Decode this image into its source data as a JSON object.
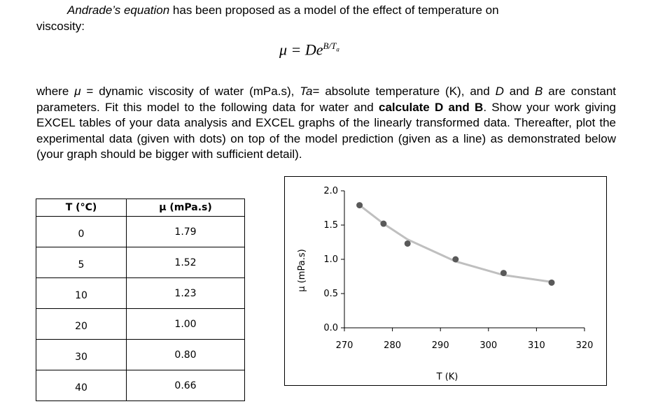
{
  "intro": {
    "em": "Andrade’s equation",
    "rest_line1": " has been proposed as a model of the effect of temperature on",
    "line2": "viscosity:"
  },
  "formula": {
    "lhs": "μ = D",
    "e": "e",
    "exp": "B/T",
    "sub": "a"
  },
  "body": {
    "p1": "where ",
    "mu": "μ",
    "p2": " = dynamic viscosity of water (mPa.s), ",
    "ta": "Ta",
    "p3": "= absolute temperature (K), and ",
    "d": "D",
    "p4": " and ",
    "b": "B",
    "p5": " are constant parameters. Fit this model to the following data for water and ",
    "bold": "calculate D and B",
    "p6": ". Show your work giving EXCEL tables of your data analysis and EXCEL graphs of the linearly transformed data. Thereafter, plot the experimental data (given with dots) on top of the model prediction (given as a line) as demonstrated below (your graph should be bigger with sufficient detail)."
  },
  "table": {
    "headers": [
      "T (°C)",
      "μ (mPa.s)"
    ],
    "rows": [
      [
        "0",
        "1.79"
      ],
      [
        "5",
        "1.52"
      ],
      [
        "10",
        "1.23"
      ],
      [
        "20",
        "1.00"
      ],
      [
        "30",
        "0.80"
      ],
      [
        "40",
        "0.66"
      ]
    ]
  },
  "chart_data": {
    "type": "scatter",
    "xlabel": "T (K)",
    "ylabel": "μ (mPa.s)",
    "xlim": [
      270,
      320
    ],
    "ylim": [
      0,
      2.0
    ],
    "x_ticks": [
      "270",
      "280",
      "290",
      "300",
      "310",
      "320"
    ],
    "y_ticks": [
      "0.0",
      "0.5",
      "1.0",
      "1.5",
      "2.0"
    ],
    "grid": false,
    "series": [
      {
        "kind": "points",
        "color": "#595959",
        "x": [
          273.15,
          278.15,
          283.15,
          293.15,
          303.15,
          313.15
        ],
        "y": [
          1.79,
          1.52,
          1.23,
          1.0,
          0.8,
          0.66
        ]
      },
      {
        "kind": "line",
        "color": "#bfbfbf",
        "x": [
          273.15,
          278.15,
          283.15,
          293.15,
          303.15,
          313.15
        ],
        "y": [
          1.79,
          1.52,
          1.29,
          0.97,
          0.77,
          0.67
        ]
      }
    ]
  }
}
